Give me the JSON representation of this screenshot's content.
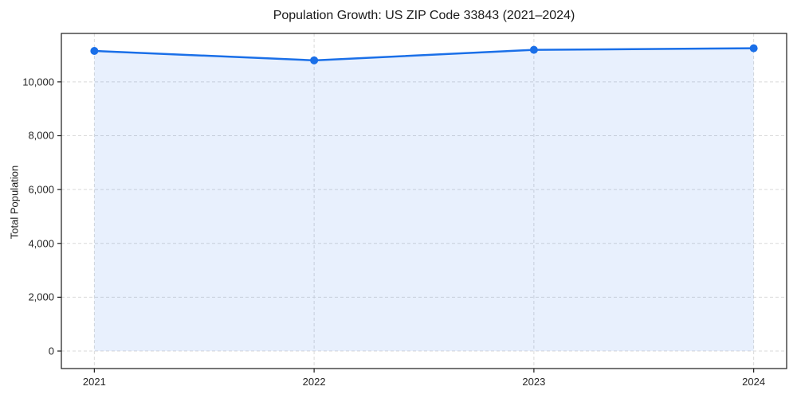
{
  "title": "Population Growth: US ZIP Code 33843 (2021–2024)",
  "chart_data": {
    "type": "area",
    "title": "Population Growth: US ZIP Code 33843 (2021–2024)",
    "xlabel": "",
    "ylabel": "Total Population",
    "x": [
      2021,
      2022,
      2023,
      2024
    ],
    "series": [
      {
        "name": "Total Population",
        "values": [
          11150,
          10800,
          11190,
          11250
        ]
      }
    ],
    "xticks": [
      2021,
      2022,
      2023,
      2024
    ],
    "xtick_labels": [
      "2021",
      "2022",
      "2023",
      "2024"
    ],
    "yticks": [
      0,
      2000,
      4000,
      6000,
      8000,
      10000
    ],
    "ytick_labels": [
      "0",
      "2,000",
      "4,000",
      "6,000",
      "8,000",
      "10,000"
    ],
    "xlim": [
      2020.85,
      2024.15
    ],
    "ylim": [
      -650,
      11800
    ],
    "grid": true,
    "legend": "none",
    "colors": {
      "line": "#1a6fe8",
      "fill": "rgba(26,111,232,0.10)",
      "grid": "#d9d9d9",
      "spine": "#1a1a1a",
      "text": "#262626"
    }
  }
}
